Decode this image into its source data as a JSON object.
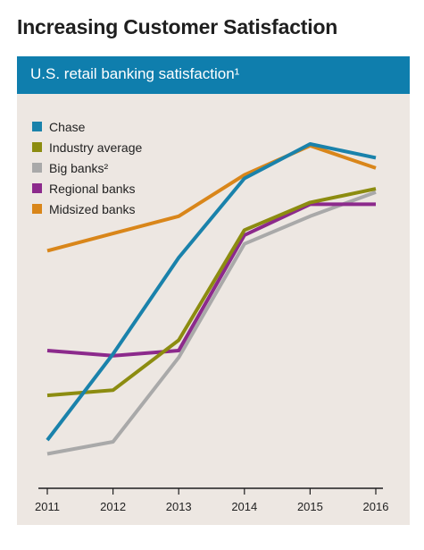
{
  "title": "Increasing Customer Satisfaction",
  "chart_data": {
    "type": "line",
    "title": "U.S. retail banking satisfaction¹",
    "x": [
      "2011",
      "2012",
      "2013",
      "2014",
      "2015",
      "2016"
    ],
    "ylim": [
      0,
      100
    ],
    "grid": false,
    "legend_position": "top-left",
    "series": [
      {
        "name": "Chase",
        "color": "#1a82ab",
        "values": [
          14,
          39,
          67,
          90,
          100,
          96
        ]
      },
      {
        "name": "Industry average",
        "color": "#8c8c10",
        "values": [
          27,
          28.5,
          43,
          75,
          83,
          87
        ]
      },
      {
        "name": "Big banks²",
        "color": "#a9a9a9",
        "values": [
          10,
          13.5,
          38,
          71,
          79,
          86
        ]
      },
      {
        "name": "Regional banks",
        "color": "#8c2a8c",
        "values": [
          40,
          38.5,
          40,
          73.5,
          82.5,
          82.5
        ]
      },
      {
        "name": "Midsized banks",
        "color": "#d9861a",
        "values": [
          69,
          74,
          79,
          91,
          99.5,
          93
        ]
      }
    ]
  }
}
